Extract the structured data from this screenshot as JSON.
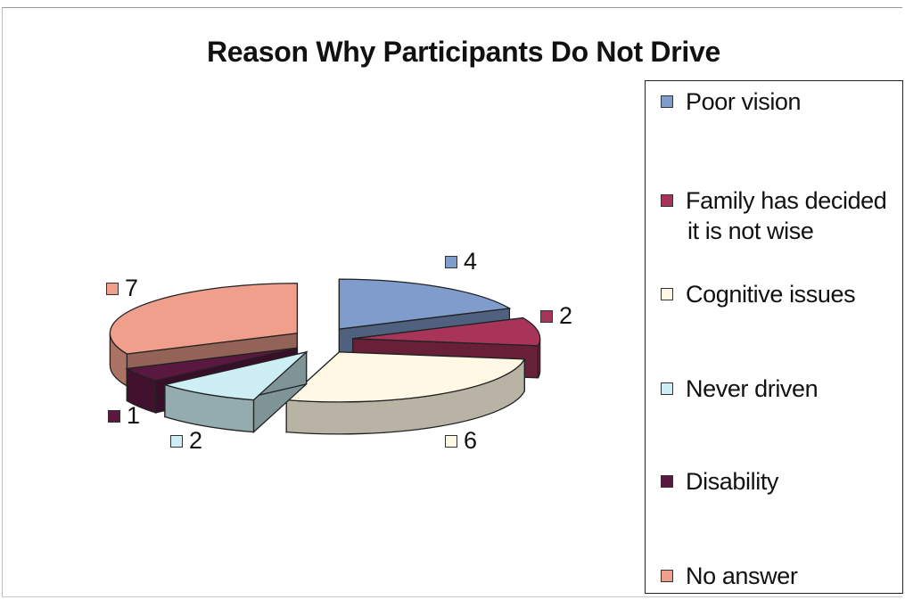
{
  "chart_data": {
    "type": "pie",
    "title": "Reason Why Participants Do Not Drive",
    "categories": [
      "Poor vision",
      "Family has decided it is not wise",
      "Cognitive issues",
      "Never driven",
      "Disability",
      "No answer"
    ],
    "values": [
      4,
      2,
      6,
      2,
      1,
      7
    ],
    "colors": [
      "#7f9ccc",
      "#a8345a",
      "#fff8e4",
      "#cdeef4",
      "#5a1740",
      "#ef9f8c"
    ],
    "style": "3d exploded",
    "legend_position": "right"
  }
}
